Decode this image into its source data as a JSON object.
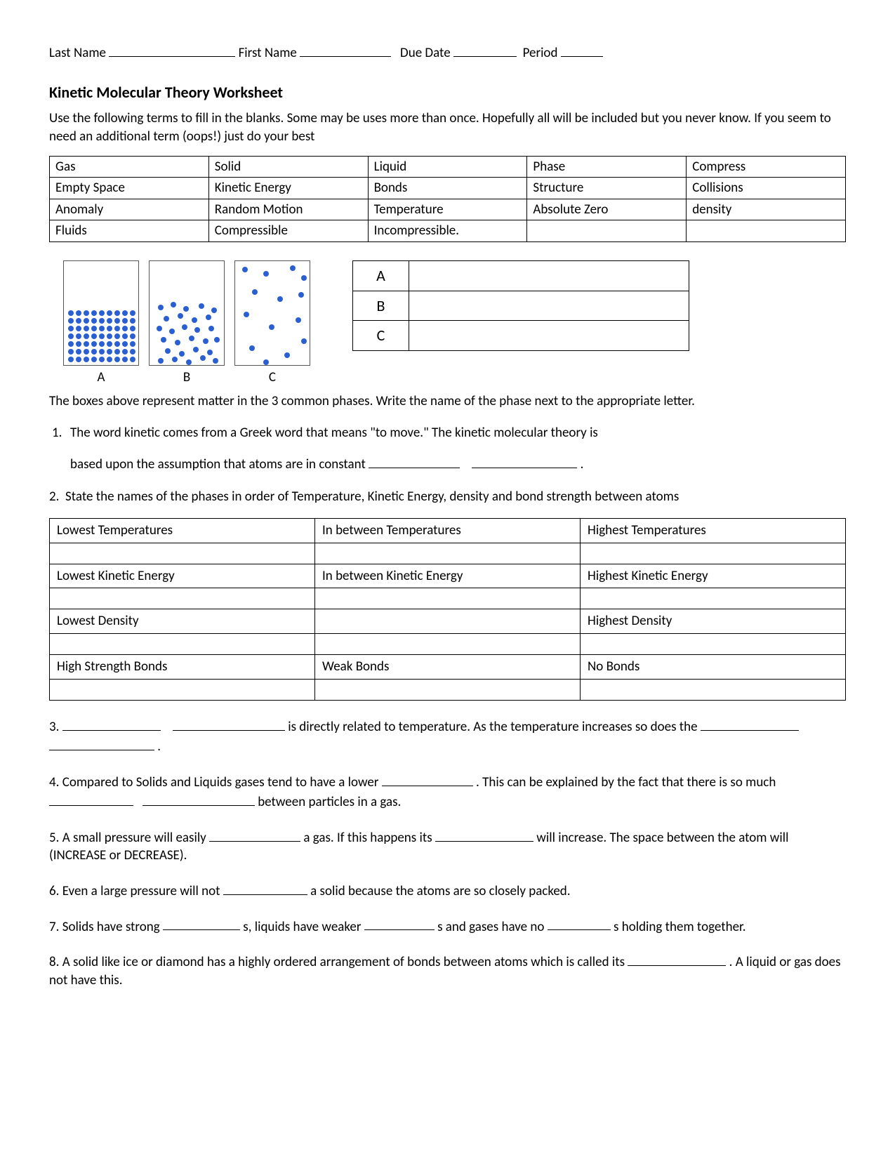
{
  "header": {
    "last_name_label": "Last Name",
    "first_name_label": "First Name",
    "due_date_label": "Due Date",
    "period_label": "Period"
  },
  "title": "Kinetic Molecular Theory Worksheet",
  "intro": "Use the following terms to fill in the blanks. Some may be uses more than once. Hopefully all will be included but you never know. If you seem to need an additional term (oops!) just do your best",
  "word_bank": {
    "rows": [
      [
        "Gas",
        "Solid",
        "Liquid",
        "Phase",
        "Compress"
      ],
      [
        "Empty Space",
        "Kinetic Energy",
        "Bonds",
        "Structure",
        "Collisions"
      ],
      [
        "Anomaly",
        "Random Motion",
        "Temperature",
        "Absolute Zero",
        "density"
      ],
      [
        "Fluids",
        "Compressible",
        "Incompressible.",
        "",
        ""
      ]
    ]
  },
  "diagram": {
    "labels": [
      "A",
      "B",
      "C"
    ],
    "abc_rows": [
      "A",
      "B",
      "C"
    ],
    "caption": "The boxes above represent matter in the 3 common phases. Write the name of the phase next to the appropriate letter.",
    "particle_color": "#2a5fd4",
    "box_border": "#555555"
  },
  "q1": {
    "num": "1.",
    "line1": "The word kinetic comes from a Greek word that means \"to move.\" The kinetic  molecular theory is",
    "line2_pre": "based upon the assumption that atoms are in constant ",
    "line2_post": "."
  },
  "q2": {
    "num": "2.",
    "text": "State the names of the phases in order of Temperature, Kinetic Energy, density and bond strength between atoms"
  },
  "phases_table": {
    "rows": [
      [
        "Lowest Temperatures",
        "In between Temperatures",
        "Highest Temperatures"
      ],
      [
        "",
        "",
        ""
      ],
      [
        "Lowest Kinetic Energy",
        "In between Kinetic Energy",
        "Highest Kinetic Energy"
      ],
      [
        "",
        "",
        ""
      ],
      [
        "Lowest Density",
        "",
        "Highest Density"
      ],
      [
        "",
        "",
        ""
      ],
      [
        "High Strength Bonds",
        "Weak Bonds",
        "No Bonds"
      ],
      [
        "",
        "",
        ""
      ]
    ]
  },
  "q3": {
    "pre": "3. ",
    "mid": " is directly related to temperature. As the temperature increases so does the ",
    "post": " ."
  },
  "q4": {
    "pre": "4. Compared to Solids and Liquids gases tend to have a lower ",
    "mid": ". This can be explained by the fact that there is so much ",
    "post": " between particles in a gas."
  },
  "q5": {
    "pre": "5. A small pressure will easily ",
    "mid1": " a gas. If this happens its ",
    "mid2": " will increase. The space between the atom will (INCREASE or DECREASE)."
  },
  "q6": {
    "pre": "6. Even a large pressure will not ",
    "post": " a solid because the atoms are so closely packed."
  },
  "q7": {
    "pre": "7. Solids have strong ",
    "mid1": "s, liquids have weaker",
    "mid2": "s and gases have no",
    "post": "s holding them together."
  },
  "q8": {
    "pre": "8.  A solid like ice or diamond has a highly ordered arrangement of bonds between atoms which is called its",
    "post": ". A liquid or gas does not have this."
  }
}
